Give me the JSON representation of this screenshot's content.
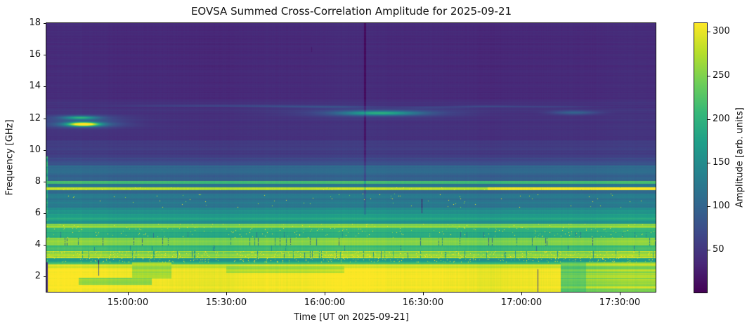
{
  "figure": {
    "background": "#ffffff",
    "text_color": "#111111"
  },
  "chart_data": {
    "type": "heatmap",
    "title": "EOVSA Summed Cross-Correlation Amplitude for 2025-09-21",
    "xlabel": "Time [UT on 2025-09-21]",
    "ylabel": "Frequency [GHz]",
    "grid": false,
    "x_ticks": [
      "15:00:00",
      "15:30:00",
      "16:00:00",
      "16:30:00",
      "17:00:00",
      "17:30:00"
    ],
    "x_range_hours": [
      14.5857,
      17.6857
    ],
    "y_ticks": [
      2,
      4,
      6,
      8,
      10,
      12,
      14,
      16,
      18
    ],
    "y_range_ghz": [
      1.0,
      18.0
    ],
    "colorbar": {
      "label": "Amplitude [arb. units]",
      "ticks": [
        50,
        100,
        150,
        200,
        250,
        300
      ],
      "vmin": 0,
      "vmax": 310,
      "position": "right"
    },
    "colormap": "viridis",
    "colormap_stops": [
      "#440154",
      "#482878",
      "#3e4989",
      "#31688e",
      "#26828e",
      "#1f9e89",
      "#35b779",
      "#6ece58",
      "#b5de2b",
      "#fde725"
    ],
    "frequency_bands": [
      {
        "f": [
          1.0,
          2.55
        ],
        "amp": 305,
        "rj": 6,
        "cj": 5
      },
      {
        "f": [
          2.55,
          2.78
        ],
        "amp": 290,
        "rj": 10,
        "cj": 5
      },
      {
        "f": [
          2.78,
          2.92
        ],
        "amp": 215,
        "rj": 20,
        "cj": 5
      },
      {
        "f": [
          2.92,
          3.16
        ],
        "amp": 170,
        "rj": 20,
        "cj": 6,
        "sp": [
          0.05,
          285
        ]
      },
      {
        "f": [
          3.16,
          3.6
        ],
        "amp": 255,
        "rj": 26,
        "cj": 8,
        "sp": [
          0.07,
          308
        ],
        "rfi": [
          0.05,
          120
        ]
      },
      {
        "f": [
          3.6,
          3.95
        ],
        "amp": 205,
        "rj": 13,
        "cj": 6,
        "rfi": [
          0.02,
          90
        ]
      },
      {
        "f": [
          3.95,
          4.45
        ],
        "amp": 248,
        "rj": 10,
        "cj": 6,
        "rfi": [
          0.04,
          165
        ]
      },
      {
        "f": [
          4.45,
          4.8
        ],
        "amp": 185,
        "rj": 12,
        "cj": 6,
        "sp": [
          0.015,
          300
        ],
        "rfi": [
          0.02,
          80
        ]
      },
      {
        "f": [
          4.8,
          5.06
        ],
        "amp": 198,
        "rj": 10,
        "cj": 5,
        "sp": [
          0.02,
          300
        ]
      },
      {
        "f": [
          5.06,
          5.35
        ],
        "amp": 248,
        "rj": 12,
        "cj": 5,
        "sp": [
          0.012,
          305
        ]
      },
      {
        "f": [
          5.35,
          5.6
        ],
        "amp": 162,
        "rj": 10,
        "cj": 4
      },
      {
        "f": [
          5.6,
          5.95
        ],
        "amp": 180,
        "rj": 12,
        "cj": 4
      },
      {
        "f": [
          5.95,
          6.35
        ],
        "amp": 148,
        "rj": 12,
        "cj": 4
      },
      {
        "f": [
          6.35,
          7.25
        ],
        "amp": 126,
        "rj": 10,
        "cj": 4,
        "sp": [
          0.004,
          290
        ]
      },
      {
        "f": [
          7.25,
          7.48
        ],
        "amp": 106,
        "rj": 8,
        "cj": 3
      },
      {
        "f": [
          7.48,
          7.66
        ],
        "amp": 272,
        "rj": 18,
        "cj": 6,
        "sp": [
          0.02,
          310
        ]
      },
      {
        "f": [
          7.66,
          7.85
        ],
        "amp": 116,
        "rj": 8,
        "cj": 3
      },
      {
        "f": [
          7.85,
          8.02
        ],
        "amp": 224,
        "rj": 13,
        "cj": 4
      },
      {
        "f": [
          8.02,
          8.35
        ],
        "amp": 92,
        "rj": 8,
        "cj": 3
      },
      {
        "f": [
          8.35,
          9.0
        ],
        "amp": 104,
        "rj": 9,
        "cj": 3
      },
      {
        "f": [
          9.0,
          9.5
        ],
        "amp": 72,
        "rj": 7,
        "cj": 2
      },
      {
        "f": [
          9.5,
          10.6
        ],
        "amp": 54,
        "rj": 5,
        "cj": 2
      },
      {
        "f": [
          10.6,
          12.5
        ],
        "amp": 45,
        "rj": 4,
        "cj": 2
      },
      {
        "f": [
          12.5,
          13.2
        ],
        "amp": 43,
        "rj": 4,
        "cj": 2
      },
      {
        "f": [
          13.2,
          18.0
        ],
        "amp": 37,
        "rj": 4,
        "cj": 2
      }
    ],
    "burst_features": [
      {
        "t": 14.775,
        "f": 11.62,
        "st_min": 3.2,
        "sf_ghz": 0.085,
        "amp": 280
      },
      {
        "t": 14.775,
        "f": 11.63,
        "st_min": 8.0,
        "sf_ghz": 0.16,
        "amp": 70
      },
      {
        "t": 14.76,
        "f": 12.03,
        "st_min": 3.5,
        "sf_ghz": 0.075,
        "amp": 120
      },
      {
        "t": 14.76,
        "f": 12.03,
        "st_min": 9.0,
        "sf_ghz": 0.14,
        "amp": 35
      },
      {
        "t": 16.28,
        "f": 12.32,
        "st_min": 8.0,
        "sf_ghz": 0.09,
        "amp": 115
      },
      {
        "t": 16.28,
        "f": 12.32,
        "st_min": 17.0,
        "sf_ghz": 0.17,
        "amp": 40
      },
      {
        "t": 15.48,
        "f": 12.78,
        "st_min": 22.0,
        "sf_ghz": 0.05,
        "amp": 28
      },
      {
        "t": 15.85,
        "f": 12.72,
        "st_min": 10.0,
        "sf_ghz": 0.05,
        "amp": 22
      },
      {
        "t": 16.08,
        "f": 12.7,
        "st_min": 8.0,
        "sf_ghz": 0.05,
        "amp": 26
      },
      {
        "t": 16.55,
        "f": 12.68,
        "st_min": 9.0,
        "sf_ghz": 0.05,
        "amp": 24
      },
      {
        "t": 16.82,
        "f": 12.75,
        "st_min": 7.0,
        "sf_ghz": 0.05,
        "amp": 26
      },
      {
        "t": 17.12,
        "f": 12.72,
        "st_min": 10.0,
        "sf_ghz": 0.05,
        "amp": 24
      },
      {
        "t": 17.27,
        "f": 12.35,
        "st_min": 5.0,
        "sf_ghz": 0.09,
        "amp": 55
      }
    ],
    "zones": [
      {
        "t": [
          16.83,
          17.69
        ],
        "f": [
          7.48,
          7.66
        ],
        "amp": 305,
        "rj": 6
      },
      {
        "t": [
          17.2,
          17.33
        ],
        "f": [
          1.0,
          2.92
        ],
        "amp": 235,
        "rj": 18
      },
      {
        "t": [
          17.33,
          17.69
        ],
        "f": [
          1.0,
          2.92
        ],
        "amp": 262,
        "rj": 30
      },
      {
        "t": [
          15.02,
          15.22
        ],
        "f": [
          1.9,
          2.92
        ],
        "amp": 268,
        "rj": 14
      },
      {
        "t": [
          15.5,
          16.1
        ],
        "f": [
          2.25,
          2.7
        ],
        "amp": 276,
        "rj": 16
      },
      {
        "t": [
          14.75,
          15.12
        ],
        "f": [
          1.5,
          1.95
        ],
        "amp": 258,
        "rj": 22
      }
    ],
    "dark_artifact_lines": [
      {
        "t": 16.2028,
        "f": [
          5.9,
          18.0
        ],
        "drop": 30,
        "w": 1
      },
      {
        "t": 14.85,
        "f": [
          2.05,
          3.05
        ],
        "drop": 220,
        "w": 0
      },
      {
        "t": 17.082,
        "f": [
          1.0,
          2.45
        ],
        "drop": 240,
        "w": 0
      },
      {
        "t": 16.493,
        "f": [
          6.0,
          6.9
        ],
        "drop": 110,
        "w": 0
      },
      {
        "t": 15.932,
        "f": [
          16.2,
          16.5
        ],
        "drop": 16,
        "w": 0
      }
    ],
    "edge_column": {
      "cols": 2,
      "bright_f": [
        2.9,
        9.6
      ],
      "bright_amp": 185,
      "dark_f": [
        1.0,
        2.9
      ],
      "dark_amp": 45
    }
  }
}
